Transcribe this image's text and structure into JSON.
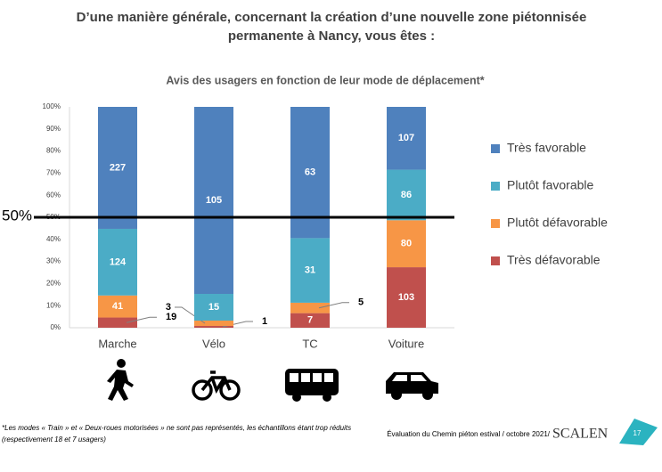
{
  "question": [
    "D’une manière générale, concernant la création d’une nouvelle zone piétonnisée",
    "permanente à Nancy, vous êtes :"
  ],
  "chart_data": {
    "type": "bar",
    "stacked": "percent",
    "title": "Avis des usagers en fonction de leur mode de déplacement*",
    "categories": [
      "Marche",
      "Vélo",
      "TC",
      "Voiture"
    ],
    "series": [
      {
        "name": "Très favorable",
        "color": "#4f81bd",
        "values": [
          227,
          105,
          63,
          107
        ]
      },
      {
        "name": "Plutôt favorable",
        "color": "#4bacc6",
        "values": [
          124,
          15,
          31,
          86
        ]
      },
      {
        "name": "Plutôt défavorable",
        "color": "#f79646",
        "values": [
          41,
          3,
          5,
          80
        ]
      },
      {
        "name": "Très défavorable",
        "color": "#c0504d",
        "values": [
          19,
          1,
          7,
          103
        ]
      }
    ],
    "ylim": [
      0,
      100
    ],
    "yticks": [
      {
        "value": 0,
        "label": "0%"
      },
      {
        "value": 10,
        "label": "10%"
      },
      {
        "value": 20,
        "label": "20%"
      },
      {
        "value": 30,
        "label": "30%"
      },
      {
        "value": 40,
        "label": "40%"
      },
      {
        "value": 50,
        "label": "50%"
      },
      {
        "value": 60,
        "label": "60%"
      },
      {
        "value": 70,
        "label": "70%"
      },
      {
        "value": 80,
        "label": "80%"
      },
      {
        "value": 90,
        "label": "90%"
      },
      {
        "value": 100,
        "label": "100%"
      }
    ],
    "reference_line": {
      "value": 50,
      "label": "50%"
    },
    "legend": "right"
  },
  "footnote": [
    "*Les modes « Train » et « Deux-roues motorisées » ne sont pas représentés, les échantillons étant trop réduits",
    "(respectivement 18 et 7 usagers)"
  ],
  "source": "Évaluation du Chemin piéton estival / octobre 2021/",
  "brand": "SCALEN",
  "page_number": 17
}
